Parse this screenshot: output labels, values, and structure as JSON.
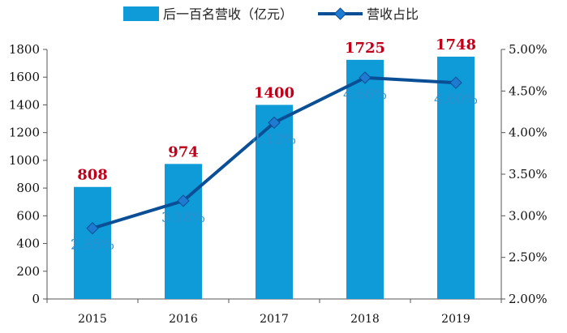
{
  "chart_data": {
    "type": "bar",
    "categories": [
      "2015",
      "2016",
      "2017",
      "2018",
      "2019"
    ],
    "series": [
      {
        "name": "后一百名营收（亿元）",
        "kind": "bar",
        "axis": "left",
        "values": [
          808,
          974,
          1400,
          1725,
          1748
        ],
        "labels": [
          "808",
          "974",
          "1400",
          "1725",
          "1748"
        ],
        "color": "#0f9bd7"
      },
      {
        "name": "营收占比",
        "kind": "line",
        "axis": "right",
        "values": [
          2.85,
          3.18,
          4.12,
          4.66,
          4.6
        ],
        "labels": [
          "2.85%",
          "3.18%",
          "4.12%",
          "4.66%",
          "4.60%"
        ],
        "color": "#0a4f96"
      }
    ],
    "y_left": {
      "range": [
        0,
        1800
      ],
      "ticks": [
        "0",
        "200",
        "400",
        "600",
        "800",
        "1000",
        "1200",
        "1400",
        "1600",
        "1800"
      ]
    },
    "y_right": {
      "range": [
        2.0,
        5.0
      ],
      "ticks": [
        "2.00%",
        "2.50%",
        "3.00%",
        "3.50%",
        "4.00%",
        "4.50%",
        "5.00%"
      ]
    },
    "grid": false,
    "legend": "top"
  }
}
